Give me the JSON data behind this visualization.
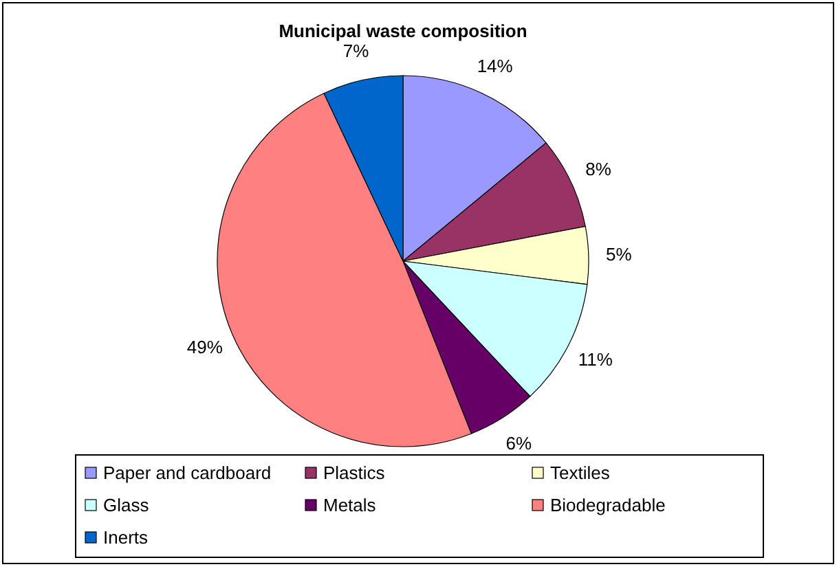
{
  "chart_data": {
    "type": "pie",
    "title": "Municipal waste composition",
    "categories": [
      "Paper and cardboard",
      "Plastics",
      "Textiles",
      "Glass",
      "Metals",
      "Biodegradable",
      "Inerts"
    ],
    "values": [
      14,
      8,
      5,
      11,
      6,
      49,
      7
    ],
    "colors": [
      "#9999ff",
      "#993366",
      "#ffffcc",
      "#ccffff",
      "#660066",
      "#ff8080",
      "#0066cc"
    ],
    "value_labels": [
      "14%",
      "8%",
      "5%",
      "11%",
      "6%",
      "49%",
      "7%"
    ],
    "legend": "bottom"
  }
}
